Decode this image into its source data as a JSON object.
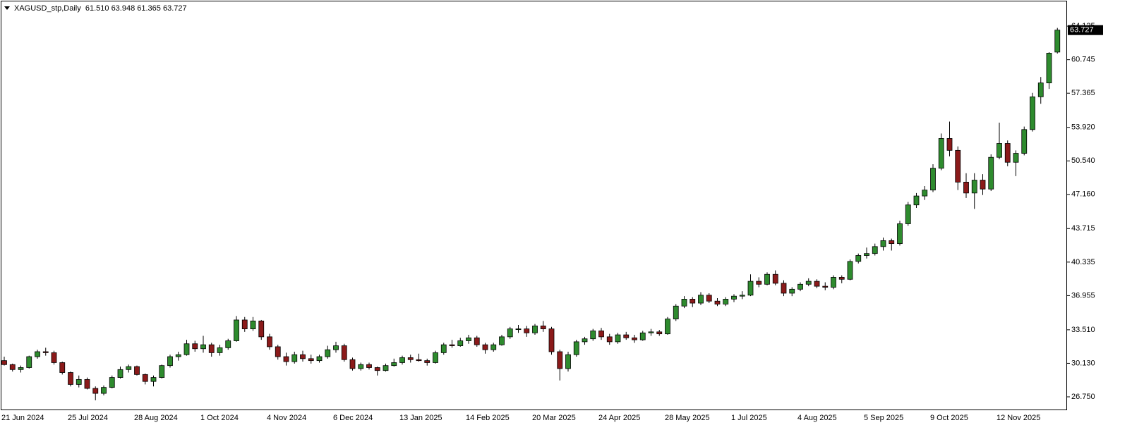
{
  "chart_data": {
    "type": "candlestick",
    "title": "XAGUSD_stp,Daily  61.510 63.948 61.365 63.727",
    "categories": [
      "21 Jun 2024",
      null,
      null,
      null,
      null,
      null,
      null,
      null,
      "25 Jul 2024",
      null,
      null,
      null,
      null,
      null,
      null,
      null,
      "28 Aug 2024",
      null,
      null,
      null,
      null,
      null,
      null,
      null,
      "1 Oct 2024",
      null,
      null,
      null,
      null,
      null,
      null,
      null,
      "4 Nov 2024",
      null,
      null,
      null,
      null,
      null,
      null,
      null,
      "6 Dec 2024",
      null,
      null,
      null,
      null,
      null,
      null,
      null,
      "13 Jan 2025",
      null,
      null,
      null,
      null,
      null,
      null,
      null,
      "14 Feb 2025",
      null,
      null,
      null,
      null,
      null,
      null,
      null,
      "20 Mar 2025",
      null,
      null,
      null,
      null,
      null,
      null,
      null,
      "24 Apr 2025",
      null,
      null,
      null,
      null,
      null,
      null,
      null,
      "28 May 2025",
      null,
      null,
      null,
      null,
      null,
      null,
      null,
      "1 Jul 2025",
      null,
      null,
      null,
      null,
      null,
      null,
      null,
      "4 Aug 2025",
      null,
      null,
      null,
      null,
      null,
      null,
      null,
      "5 Sep 2025",
      null,
      null,
      null,
      null,
      null,
      null,
      null,
      "9 Oct 2025",
      null,
      null,
      null,
      null,
      null,
      null,
      null,
      "12 Nov 2025",
      null,
      null,
      null,
      null,
      null,
      null,
      null
    ],
    "open": [
      30.4,
      30.0,
      29.5,
      29.7,
      30.8,
      31.3,
      31.2,
      30.2,
      29.2,
      28.0,
      28.5,
      27.6,
      27.1,
      27.7,
      28.7,
      29.5,
      29.8,
      29.0,
      28.3,
      28.7,
      29.9,
      30.8,
      31.0,
      32.1,
      31.6,
      32.0,
      31.2,
      31.7,
      32.4,
      34.5,
      33.6,
      34.4,
      32.8,
      31.8,
      30.8,
      30.3,
      31.0,
      30.6,
      30.4,
      30.8,
      31.5,
      31.9,
      30.5,
      29.6,
      30.0,
      29.7,
      29.4,
      29.9,
      30.2,
      30.7,
      30.5,
      30.4,
      30.2,
      31.2,
      32.0,
      31.9,
      32.4,
      32.7,
      32.0,
      31.5,
      32.0,
      32.8,
      33.6,
      33.6,
      33.2,
      33.9,
      33.6,
      31.3,
      29.6,
      31.0,
      32.3,
      32.6,
      33.4,
      32.8,
      32.3,
      33.0,
      32.7,
      32.5,
      33.2,
      33.3,
      33.1,
      34.6,
      35.9,
      36.6,
      36.2,
      37.0,
      36.4,
      36.1,
      36.6,
      36.9,
      37.0,
      38.4,
      38.1,
      39.1,
      38.2,
      37.2,
      37.6,
      38.1,
      38.4,
      37.9,
      37.8,
      38.8,
      38.6,
      40.4,
      41.0,
      41.2,
      41.9,
      42.5,
      42.2,
      44.2,
      46.1,
      47.0,
      47.6,
      49.8,
      52.8,
      51.6,
      48.4,
      47.3,
      48.6,
      47.7,
      50.9,
      52.3,
      50.4,
      51.3,
      53.7,
      57.0,
      58.4,
      61.51
    ],
    "high": [
      30.8,
      30.1,
      29.9,
      30.9,
      31.5,
      31.7,
      31.4,
      30.3,
      29.3,
      28.9,
      28.7,
      27.8,
      27.9,
      28.9,
      29.8,
      30.0,
      29.9,
      29.1,
      28.9,
      30.0,
      31.0,
      31.3,
      32.5,
      32.4,
      32.9,
      32.2,
      32.0,
      32.6,
      34.9,
      34.8,
      34.8,
      34.5,
      33.1,
      32.0,
      31.2,
      31.3,
      31.4,
      31.0,
      31.0,
      31.9,
      32.3,
      32.1,
      30.7,
      30.2,
      30.2,
      29.8,
      30.1,
      30.6,
      30.9,
      31.0,
      31.1,
      30.6,
      31.4,
      32.2,
      32.5,
      32.7,
      33.0,
      32.9,
      32.2,
      32.2,
      33.0,
      33.8,
      34.0,
      33.9,
      34.1,
      34.4,
      33.8,
      31.5,
      31.3,
      32.5,
      32.8,
      33.6,
      33.7,
      33.1,
      33.2,
      33.3,
      33.0,
      33.4,
      33.6,
      33.5,
      34.8,
      36.1,
      36.9,
      36.8,
      37.3,
      37.2,
      36.7,
      36.8,
      37.1,
      37.4,
      39.1,
      38.8,
      39.3,
      39.5,
      38.5,
      37.8,
      38.3,
      38.7,
      38.6,
      38.3,
      39.0,
      39.0,
      40.6,
      41.2,
      41.8,
      42.2,
      42.8,
      42.7,
      44.5,
      46.4,
      47.3,
      48.0,
      50.2,
      53.3,
      54.5,
      52.0,
      49.3,
      49.3,
      49.2,
      51.2,
      54.4,
      52.6,
      51.6,
      54.0,
      57.4,
      59.0,
      61.5,
      63.948
    ],
    "low": [
      29.9,
      29.3,
      29.2,
      29.6,
      30.6,
      30.9,
      30.0,
      29.0,
      27.8,
      27.7,
      27.5,
      26.4,
      26.9,
      27.6,
      28.6,
      29.2,
      28.9,
      28.0,
      27.8,
      28.6,
      29.7,
      30.4,
      30.9,
      31.3,
      31.2,
      30.8,
      30.9,
      31.5,
      32.3,
      33.3,
      33.4,
      32.5,
      31.5,
      30.5,
      29.9,
      30.1,
      30.3,
      30.1,
      30.2,
      30.6,
      31.2,
      30.3,
      29.4,
      29.4,
      29.5,
      28.9,
      29.3,
      29.8,
      30.0,
      30.2,
      30.3,
      29.9,
      30.1,
      31.0,
      31.7,
      31.8,
      32.1,
      31.8,
      31.1,
      31.3,
      31.9,
      32.6,
      33.2,
      32.8,
      33.0,
      33.3,
      31.0,
      28.4,
      29.3,
      30.8,
      32.0,
      32.4,
      32.5,
      32.0,
      32.1,
      32.5,
      32.2,
      32.4,
      32.9,
      32.9,
      33.0,
      34.4,
      35.7,
      35.8,
      36.0,
      36.2,
      35.9,
      35.9,
      36.3,
      36.6,
      36.9,
      37.8,
      38.0,
      38.0,
      36.9,
      36.9,
      37.4,
      37.9,
      37.7,
      37.5,
      37.6,
      38.2,
      38.5,
      40.2,
      40.7,
      41.0,
      41.5,
      41.5,
      42.0,
      44.0,
      45.8,
      46.6,
      47.4,
      49.6,
      51.0,
      47.6,
      46.8,
      45.7,
      47.1,
      47.5,
      50.7,
      50.0,
      49.0,
      51.1,
      53.5,
      56.3,
      57.8,
      61.365
    ],
    "close": [
      30.0,
      29.5,
      29.7,
      30.8,
      31.3,
      31.2,
      30.2,
      29.2,
      28.0,
      28.5,
      27.6,
      27.1,
      27.7,
      28.7,
      29.5,
      29.8,
      29.0,
      28.3,
      28.7,
      29.9,
      30.8,
      31.0,
      32.1,
      31.6,
      32.0,
      31.2,
      31.7,
      32.4,
      34.5,
      33.6,
      34.4,
      32.8,
      31.8,
      30.8,
      30.3,
      31.0,
      30.6,
      30.4,
      30.8,
      31.5,
      31.9,
      30.5,
      29.6,
      30.0,
      29.7,
      29.4,
      29.9,
      30.2,
      30.7,
      30.5,
      30.4,
      30.2,
      31.2,
      32.0,
      31.9,
      32.4,
      32.7,
      32.0,
      31.5,
      32.0,
      32.8,
      33.6,
      33.6,
      33.2,
      33.9,
      33.6,
      31.3,
      29.6,
      31.0,
      32.3,
      32.6,
      33.4,
      32.8,
      32.3,
      33.0,
      32.7,
      32.5,
      33.2,
      33.3,
      33.1,
      34.6,
      35.9,
      36.6,
      36.2,
      37.0,
      36.4,
      36.1,
      36.6,
      36.9,
      37.0,
      38.4,
      38.1,
      39.1,
      38.2,
      37.2,
      37.6,
      38.1,
      38.4,
      37.9,
      37.8,
      38.8,
      38.6,
      40.4,
      41.0,
      41.2,
      41.9,
      42.5,
      42.2,
      44.2,
      46.1,
      47.0,
      47.6,
      49.8,
      52.8,
      51.6,
      48.4,
      47.3,
      48.6,
      47.7,
      50.9,
      52.3,
      50.4,
      51.3,
      53.7,
      57.0,
      58.4,
      61.4,
      63.727
    ],
    "up_color": "#2e8b2e",
    "down_color": "#8b1a1a",
    "wick_color": "#000000",
    "last_price": 63.727,
    "ylim": [
      25.4,
      66.62
    ],
    "yticks": [
      {
        "value": 26.75,
        "label": "26.750"
      },
      {
        "value": 30.13,
        "label": "30.130"
      },
      {
        "value": 33.51,
        "label": "33.510"
      },
      36.955,
      40.335,
      43.715,
      {
        "value": 47.16,
        "label": "47.160"
      },
      {
        "value": 50.54,
        "label": "50.540"
      },
      {
        "value": 53.92,
        "label": "53.920"
      },
      57.365,
      60.745,
      64.125
    ],
    "grid": false
  }
}
